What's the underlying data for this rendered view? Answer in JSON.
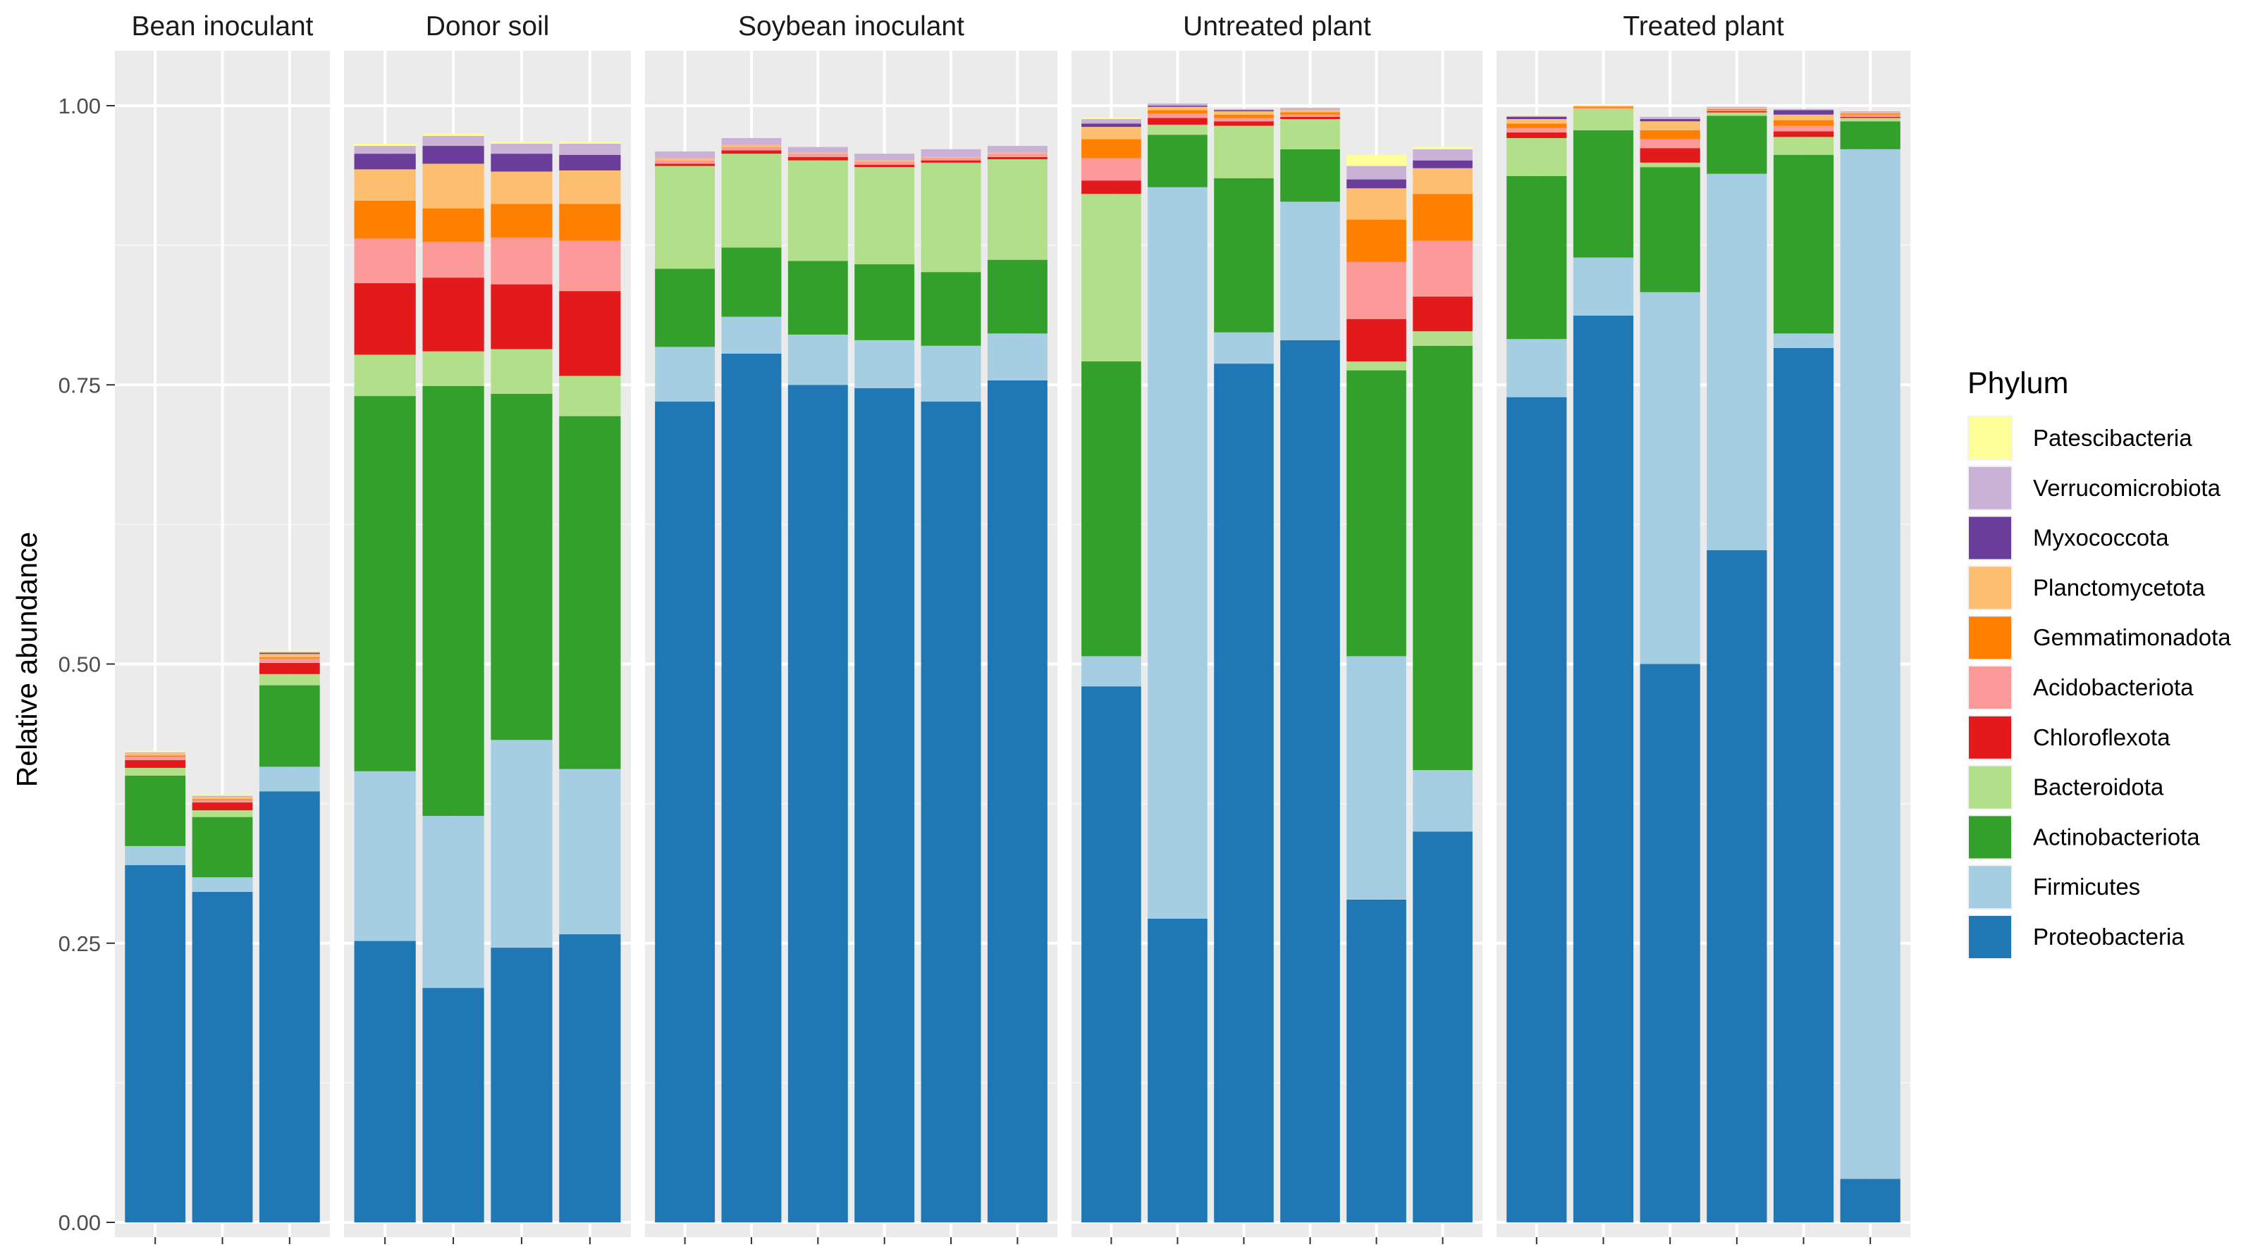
{
  "chart_data": {
    "type": "bar",
    "stacked": true,
    "faceted": true,
    "ylabel": "Relative abundance",
    "xlabel": "",
    "ylim": [
      0,
      1.04
    ],
    "y_ticks": [
      0.0,
      0.25,
      0.5,
      0.75,
      1.0
    ],
    "y_tick_labels": [
      "0.00",
      "0.25",
      "0.50",
      "0.75",
      "1.00"
    ],
    "grid": true,
    "legend_title": "Phylum",
    "legend_position": "right",
    "phyla": [
      {
        "name": "Patescibacteria",
        "color": "#FFFF99"
      },
      {
        "name": "Verrucomicrobiota",
        "color": "#CAB2D6"
      },
      {
        "name": "Myxococcota",
        "color": "#6A3D9A"
      },
      {
        "name": "Planctomycetota",
        "color": "#FDBF6F"
      },
      {
        "name": "Gemmatimonadota",
        "color": "#FF7F00"
      },
      {
        "name": "Acidobacteriota",
        "color": "#FB9A99"
      },
      {
        "name": "Chloroflexota",
        "color": "#E31A1C"
      },
      {
        "name": "Bacteroidota",
        "color": "#B2DF8A"
      },
      {
        "name": "Actinobacteriota",
        "color": "#33A02C"
      },
      {
        "name": "Firmicutes",
        "color": "#A6CEE3"
      },
      {
        "name": "Proteobacteria",
        "color": "#1F78B4"
      }
    ],
    "stack_order_note": "values listed bottom-to-top: Proteobacteria, Firmicutes, Actinobacteriota, Bacteroidota, Chloroflexota, Acidobacteriota, Gemmatimonadota, Planctomycetota, Myxococcota, Verrucomicrobiota, Patescibacteria",
    "facets": [
      {
        "title": "Bean inoculant",
        "samples": [
          [
            0.32,
            0.017,
            0.063,
            0.007,
            0.007,
            0.003,
            0.001,
            0.002,
            0.0,
            0.001,
            0.001
          ],
          [
            0.296,
            0.013,
            0.054,
            0.006,
            0.007,
            0.002,
            0.001,
            0.002,
            0.0,
            0.001,
            0.001
          ],
          [
            0.386,
            0.022,
            0.073,
            0.01,
            0.01,
            0.004,
            0.001,
            0.003,
            0.001,
            0.001,
            0.001
          ]
        ]
      },
      {
        "title": "Donor soil",
        "samples": [
          [
            0.252,
            0.152,
            0.336,
            0.037,
            0.064,
            0.04,
            0.034,
            0.028,
            0.014,
            0.007,
            0.002
          ],
          [
            0.21,
            0.154,
            0.385,
            0.031,
            0.066,
            0.032,
            0.03,
            0.04,
            0.016,
            0.009,
            0.002
          ],
          [
            0.246,
            0.186,
            0.31,
            0.04,
            0.058,
            0.042,
            0.03,
            0.029,
            0.016,
            0.009,
            0.002
          ],
          [
            0.258,
            0.148,
            0.316,
            0.036,
            0.076,
            0.045,
            0.033,
            0.03,
            0.014,
            0.01,
            0.002
          ]
        ]
      },
      {
        "title": "Soybean inoculant",
        "samples": [
          [
            0.735,
            0.049,
            0.07,
            0.092,
            0.002,
            0.003,
            0.0,
            0.002,
            0.0,
            0.006,
            0.0
          ],
          [
            0.778,
            0.033,
            0.062,
            0.084,
            0.003,
            0.003,
            0.0,
            0.002,
            0.0,
            0.006,
            0.0
          ],
          [
            0.75,
            0.045,
            0.066,
            0.09,
            0.003,
            0.003,
            0.0,
            0.001,
            0.0,
            0.005,
            0.0
          ],
          [
            0.747,
            0.043,
            0.068,
            0.087,
            0.002,
            0.003,
            0.0,
            0.001,
            0.0,
            0.006,
            0.0
          ],
          [
            0.735,
            0.05,
            0.066,
            0.098,
            0.002,
            0.002,
            0.0,
            0.001,
            0.0,
            0.007,
            0.0
          ],
          [
            0.754,
            0.042,
            0.066,
            0.09,
            0.002,
            0.003,
            0.0,
            0.001,
            0.0,
            0.006,
            0.0
          ]
        ]
      },
      {
        "title": "Untreated plant",
        "samples": [
          [
            0.48,
            0.027,
            0.264,
            0.15,
            0.012,
            0.02,
            0.017,
            0.011,
            0.003,
            0.004,
            0.001
          ],
          [
            0.272,
            0.655,
            0.047,
            0.009,
            0.006,
            0.004,
            0.003,
            0.003,
            0.001,
            0.002,
            0.0
          ],
          [
            0.769,
            0.028,
            0.138,
            0.047,
            0.004,
            0.003,
            0.003,
            0.003,
            0.001,
            0.001,
            0.0
          ],
          [
            0.79,
            0.124,
            0.047,
            0.027,
            0.002,
            0.002,
            0.002,
            0.002,
            0.0,
            0.002,
            0.0
          ],
          [
            0.289,
            0.218,
            0.256,
            0.008,
            0.038,
            0.051,
            0.038,
            0.028,
            0.008,
            0.012,
            0.01
          ],
          [
            0.35,
            0.055,
            0.38,
            0.013,
            0.031,
            0.05,
            0.042,
            0.023,
            0.007,
            0.01,
            0.002
          ]
        ]
      },
      {
        "title": "Treated plant",
        "samples": [
          [
            0.739,
            0.052,
            0.146,
            0.034,
            0.005,
            0.004,
            0.004,
            0.004,
            0.002,
            0.001,
            0.001
          ],
          [
            0.812,
            0.052,
            0.114,
            0.019,
            0.0,
            0.001,
            0.001,
            0.001,
            0.0,
            0.0,
            0.0
          ],
          [
            0.5,
            0.333,
            0.112,
            0.004,
            0.013,
            0.008,
            0.008,
            0.008,
            0.002,
            0.002,
            0.0
          ],
          [
            0.602,
            0.337,
            0.052,
            0.003,
            0.001,
            0.001,
            0.001,
            0.001,
            0.0,
            0.001,
            0.0
          ],
          [
            0.783,
            0.013,
            0.16,
            0.016,
            0.005,
            0.005,
            0.005,
            0.005,
            0.004,
            0.001,
            0.0
          ],
          [
            0.039,
            0.922,
            0.025,
            0.003,
            0.001,
            0.002,
            0.001,
            0.001,
            0.0,
            0.001,
            0.0
          ]
        ]
      }
    ]
  }
}
